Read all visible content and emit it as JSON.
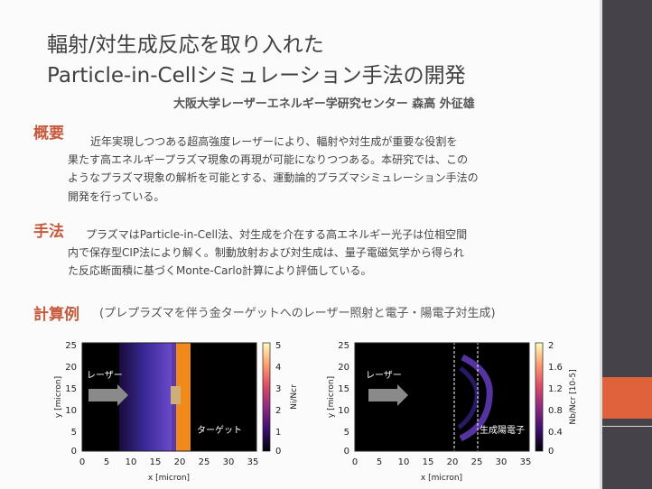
{
  "title_line1": "輻射/対生成反応を取り入れた",
  "title_line2": "Particle-in-Cellシミュレーション手法の開発",
  "affiliation": "大阪大学レーザーエネルギー学研究センター 森高 外征雄",
  "overview": {
    "heading": "概要",
    "lines": [
      "近年実現しつつある超高強度レーザーにより、輻射や対生成が重要な役割を",
      "果たす高エネルギープラズマ現象の再現が可能になりつつある。本研究では、この",
      "ようなプラズマ現象の解析を可能とする、運動論的プラズマシミュレーション手法の",
      "開発を行っている。"
    ]
  },
  "method": {
    "heading": "手法",
    "lines": [
      "プラズマはParticle-in-Cell法、対生成を介在する高エネルギー光子は位相空間",
      "内で保存型CIP法により解く。制動放射および対生成は、量子電磁気学から得られ",
      "た反応断面積に基づくMonte-Carlo計算により評価している。"
    ]
  },
  "example": {
    "heading": "計算例",
    "caption": "(プレプラズマを伴う金ターゲットへのレーザー照射と電子・陽電子対生成)"
  },
  "plots": [
    {
      "xlabel": "x [micron]",
      "ylabel": "y [micron]",
      "x_ticks": [
        "0",
        "5",
        "10",
        "15",
        "20",
        "25",
        "30",
        "35"
      ],
      "y_ticks": [
        "25",
        "20",
        "15",
        "10",
        "5",
        "0"
      ],
      "colorbar_label": "Ni/Ncr",
      "colorbar_ticks": [
        "5",
        "4",
        "3",
        "2",
        "1",
        "0"
      ],
      "laser_label": "レーザー",
      "region_label": "ターゲット"
    },
    {
      "xlabel": "x [micron]",
      "ylabel": "y [micron]",
      "x_ticks": [
        "0",
        "5",
        "10",
        "15",
        "20",
        "25",
        "30",
        "35"
      ],
      "y_ticks": [
        "25",
        "20",
        "15",
        "10",
        "5",
        "0"
      ],
      "colorbar_label": "Nb/Ncr [10-5]",
      "colorbar_ticks": [
        "2",
        "1.6",
        "1.2",
        "0.8",
        "0.4",
        "0"
      ],
      "laser_label": "レーザー",
      "region_label": "生成陽電子"
    }
  ]
}
